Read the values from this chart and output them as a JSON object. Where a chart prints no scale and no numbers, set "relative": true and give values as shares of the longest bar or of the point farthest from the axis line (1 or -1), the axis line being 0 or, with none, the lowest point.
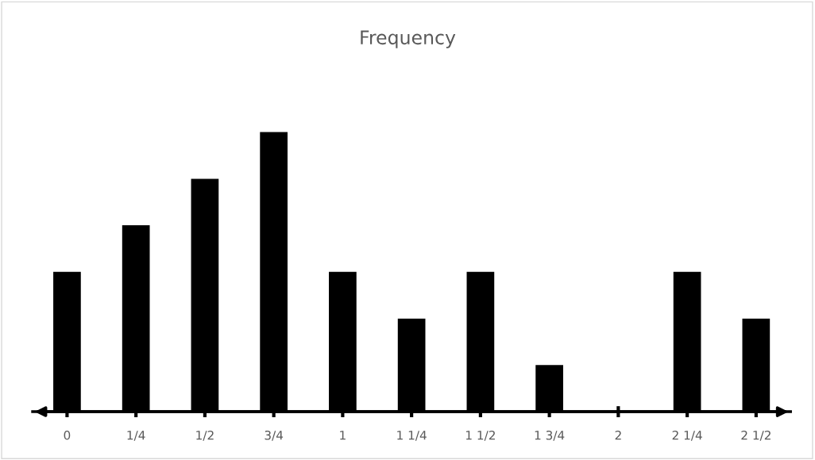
{
  "chart_data": {
    "type": "bar",
    "title": "Frequency",
    "relative": true,
    "color": "#000000",
    "categories": [
      "0",
      "1/4",
      "1/2",
      "3/4",
      "1",
      "1 1/4",
      "1 1/2",
      "1 3/4",
      "2",
      "2 1/4",
      "2 1/2"
    ],
    "values": [
      0.5,
      0.667,
      0.833,
      1,
      0.5,
      0.333,
      0.5,
      0.167,
      0,
      0.5,
      0.333
    ],
    "grid": false,
    "legend": false
  }
}
